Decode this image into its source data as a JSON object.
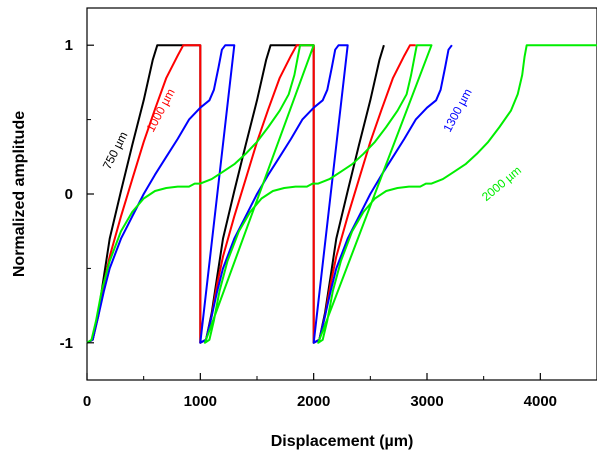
{
  "chart_data": {
    "type": "line",
    "xlabel": "Displacement (µm)",
    "ylabel": "Normalized amplitude",
    "xlim": [
      0,
      4500
    ],
    "ylim": [
      -1.25,
      1.25
    ],
    "x_ticks": [
      0,
      1000,
      2000,
      3000,
      4000
    ],
    "x_tick_labels": [
      "0",
      "1000",
      "2000",
      "3000",
      "4000"
    ],
    "y_ticks": [
      -1,
      0,
      1
    ],
    "y_tick_labels": [
      "-1",
      "0",
      "1"
    ],
    "grid": false,
    "series": [
      {
        "name": "750 µm",
        "color": "#000000",
        "points": [
          [
            0,
            -1
          ],
          [
            50,
            -0.98
          ],
          [
            100,
            -0.8
          ],
          [
            150,
            -0.55
          ],
          [
            200,
            -0.3
          ],
          [
            300,
            0.02
          ],
          [
            400,
            0.33
          ],
          [
            500,
            0.63
          ],
          [
            580,
            0.9
          ],
          [
            620,
            1
          ],
          [
            1000,
            1
          ],
          [
            1000,
            -1
          ],
          [
            1050,
            -0.98
          ],
          [
            1100,
            -0.8
          ],
          [
            1150,
            -0.55
          ],
          [
            1200,
            -0.3
          ],
          [
            1300,
            0.02
          ],
          [
            1400,
            0.33
          ],
          [
            1500,
            0.63
          ],
          [
            1580,
            0.9
          ],
          [
            1620,
            1
          ],
          [
            2000,
            1
          ],
          [
            2000,
            -1
          ],
          [
            2050,
            -0.98
          ],
          [
            2100,
            -0.8
          ],
          [
            2150,
            -0.55
          ],
          [
            2200,
            -0.3
          ],
          [
            2300,
            0.02
          ],
          [
            2400,
            0.33
          ],
          [
            2500,
            0.63
          ],
          [
            2580,
            0.9
          ],
          [
            2620,
            1
          ]
        ]
      },
      {
        "name": "1000 µm",
        "color": "#ff0000",
        "points": [
          [
            0,
            -1
          ],
          [
            50,
            -0.98
          ],
          [
            100,
            -0.82
          ],
          [
            150,
            -0.6
          ],
          [
            200,
            -0.42
          ],
          [
            300,
            -0.15
          ],
          [
            400,
            0.1
          ],
          [
            500,
            0.35
          ],
          [
            600,
            0.57
          ],
          [
            700,
            0.78
          ],
          [
            800,
            0.93
          ],
          [
            850,
            1
          ],
          [
            1000,
            1
          ],
          [
            1000,
            -1
          ],
          [
            1050,
            -0.98
          ],
          [
            1100,
            -0.82
          ],
          [
            1150,
            -0.6
          ],
          [
            1200,
            -0.42
          ],
          [
            1300,
            -0.15
          ],
          [
            1400,
            0.1
          ],
          [
            1500,
            0.35
          ],
          [
            1600,
            0.57
          ],
          [
            1700,
            0.78
          ],
          [
            1800,
            0.93
          ],
          [
            1850,
            1
          ],
          [
            2000,
            1
          ],
          [
            2000,
            -1
          ],
          [
            2050,
            -0.98
          ],
          [
            2100,
            -0.82
          ],
          [
            2150,
            -0.6
          ],
          [
            2200,
            -0.42
          ],
          [
            2300,
            -0.15
          ],
          [
            2400,
            0.1
          ],
          [
            2500,
            0.35
          ],
          [
            2600,
            0.57
          ],
          [
            2700,
            0.78
          ],
          [
            2800,
            0.93
          ],
          [
            2850,
            1
          ],
          [
            2900,
            1
          ]
        ]
      },
      {
        "name": "1300 µm",
        "color": "#0000ff",
        "points": [
          [
            0,
            -1
          ],
          [
            50,
            -0.98
          ],
          [
            100,
            -0.82
          ],
          [
            150,
            -0.65
          ],
          [
            200,
            -0.5
          ],
          [
            300,
            -0.3
          ],
          [
            400,
            -0.15
          ],
          [
            500,
            0
          ],
          [
            600,
            0.13
          ],
          [
            700,
            0.25
          ],
          [
            800,
            0.37
          ],
          [
            900,
            0.5
          ],
          [
            1000,
            0.58
          ],
          [
            1080,
            0.63
          ],
          [
            1120,
            0.7
          ],
          [
            1160,
            0.85
          ],
          [
            1190,
            0.97
          ],
          [
            1220,
            1
          ],
          [
            1300,
            1
          ],
          [
            1000,
            -1
          ],
          [
            1050,
            -0.98
          ],
          [
            1100,
            -0.82
          ],
          [
            1150,
            -0.65
          ],
          [
            1200,
            -0.5
          ],
          [
            1300,
            -0.3
          ],
          [
            1400,
            -0.15
          ],
          [
            1500,
            0
          ],
          [
            1600,
            0.13
          ],
          [
            1700,
            0.25
          ],
          [
            1800,
            0.37
          ],
          [
            1900,
            0.5
          ],
          [
            2000,
            0.58
          ],
          [
            2080,
            0.63
          ],
          [
            2120,
            0.7
          ],
          [
            2160,
            0.85
          ],
          [
            2190,
            0.97
          ],
          [
            2220,
            1
          ],
          [
            2300,
            1
          ],
          [
            2000,
            -1
          ],
          [
            2050,
            -0.98
          ],
          [
            2100,
            -0.82
          ],
          [
            2150,
            -0.65
          ],
          [
            2200,
            -0.5
          ],
          [
            2300,
            -0.3
          ],
          [
            2400,
            -0.15
          ],
          [
            2500,
            0
          ],
          [
            2600,
            0.13
          ],
          [
            2700,
            0.25
          ],
          [
            2800,
            0.37
          ],
          [
            2900,
            0.5
          ],
          [
            3000,
            0.58
          ],
          [
            3080,
            0.63
          ],
          [
            3120,
            0.7
          ],
          [
            3160,
            0.85
          ],
          [
            3190,
            0.97
          ],
          [
            3220,
            1
          ]
        ]
      },
      {
        "name": "2000 µm",
        "color": "#00ee00",
        "points": [
          [
            0,
            -1
          ],
          [
            40,
            -0.98
          ],
          [
            80,
            -0.85
          ],
          [
            130,
            -0.65
          ],
          [
            200,
            -0.45
          ],
          [
            300,
            -0.25
          ],
          [
            400,
            -0.12
          ],
          [
            500,
            -0.03
          ],
          [
            600,
            0.02
          ],
          [
            700,
            0.04
          ],
          [
            800,
            0.05
          ],
          [
            900,
            0.05
          ],
          [
            950,
            0.07
          ],
          [
            1000,
            0.07
          ],
          [
            1100,
            0.1
          ],
          [
            1200,
            0.15
          ],
          [
            1300,
            0.2
          ],
          [
            1400,
            0.27
          ],
          [
            1500,
            0.35
          ],
          [
            1600,
            0.45
          ],
          [
            1700,
            0.56
          ],
          [
            1780,
            0.67
          ],
          [
            1830,
            0.8
          ],
          [
            1860,
            0.92
          ],
          [
            1880,
            1
          ],
          [
            2000,
            1
          ],
          [
            1040,
            -1
          ],
          [
            1080,
            -0.98
          ],
          [
            1120,
            -0.85
          ],
          [
            1170,
            -0.65
          ],
          [
            1240,
            -0.45
          ],
          [
            1340,
            -0.25
          ],
          [
            1440,
            -0.12
          ],
          [
            1540,
            -0.03
          ],
          [
            1640,
            0.02
          ],
          [
            1740,
            0.04
          ],
          [
            1840,
            0.05
          ],
          [
            1940,
            0.05
          ],
          [
            1990,
            0.07
          ],
          [
            2040,
            0.07
          ],
          [
            2140,
            0.1
          ],
          [
            2240,
            0.15
          ],
          [
            2340,
            0.2
          ],
          [
            2440,
            0.27
          ],
          [
            2540,
            0.35
          ],
          [
            2640,
            0.45
          ],
          [
            2740,
            0.56
          ],
          [
            2820,
            0.67
          ],
          [
            2860,
            0.8
          ],
          [
            2890,
            0.92
          ],
          [
            2910,
            1
          ],
          [
            3040,
            1
          ],
          [
            2040,
            -1
          ],
          [
            2080,
            -0.98
          ],
          [
            2120,
            -0.85
          ],
          [
            2170,
            -0.65
          ],
          [
            2240,
            -0.45
          ],
          [
            2340,
            -0.25
          ],
          [
            2440,
            -0.12
          ],
          [
            2540,
            -0.03
          ],
          [
            2640,
            0.02
          ],
          [
            2740,
            0.04
          ],
          [
            2840,
            0.05
          ],
          [
            2940,
            0.05
          ],
          [
            2990,
            0.07
          ],
          [
            3040,
            0.07
          ],
          [
            3140,
            0.1
          ],
          [
            3240,
            0.15
          ],
          [
            3340,
            0.2
          ],
          [
            3440,
            0.27
          ],
          [
            3540,
            0.35
          ],
          [
            3640,
            0.45
          ],
          [
            3740,
            0.56
          ],
          [
            3800,
            0.67
          ],
          [
            3840,
            0.8
          ],
          [
            3860,
            0.92
          ],
          [
            3880,
            1
          ],
          [
            4100,
            1
          ],
          [
            4500,
            1
          ]
        ]
      }
    ],
    "labels": [
      {
        "text": "750 µm",
        "series": "750 µm",
        "color": "#000000",
        "x": 280,
        "y": 0.28,
        "angle": -63
      },
      {
        "text": "1000 µm",
        "series": "1000 µm",
        "color": "#ff0000",
        "x": 680,
        "y": 0.55,
        "angle": -62
      },
      {
        "text": "1300 µm",
        "series": "1300 µm",
        "color": "#0000ff",
        "x": 3300,
        "y": 0.55,
        "angle": -62
      },
      {
        "text": "2000 µm",
        "series": "2000 µm",
        "color": "#00ee00",
        "x": 3680,
        "y": 0.05,
        "angle": -40
      }
    ]
  }
}
